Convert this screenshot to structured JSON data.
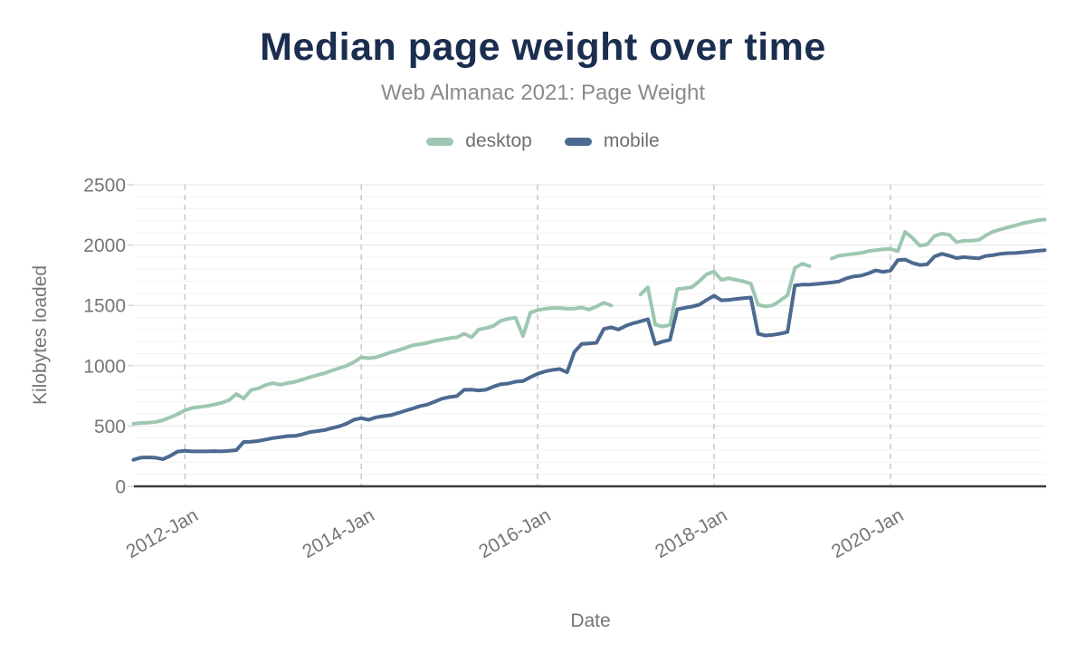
{
  "header": {
    "title": "Median page weight over time",
    "subtitle": "Web Almanac 2021: Page Weight"
  },
  "axes": {
    "y_label": "Kilobytes loaded",
    "x_label": "Date"
  },
  "legend": [
    {
      "label": "desktop",
      "color": "#9dc7b0"
    },
    {
      "label": "mobile",
      "color": "#4c6990"
    }
  ],
  "colors": {
    "title": "#1c2e4f",
    "subtitle_gray": "#8a8a8a",
    "axis_text_gray": "#757575",
    "axis_line": "#3c3c3c",
    "major_grid": "#e4e4e4",
    "minor_grid": "#f3f3f3",
    "dashed_grid": "#c8c8c8"
  },
  "chart_data": {
    "type": "line",
    "title": "Median page weight over time",
    "subtitle": "Web Almanac 2021: Page Weight",
    "xlabel": "Date",
    "ylabel": "Kilobytes loaded",
    "ylim": [
      0,
      2500
    ],
    "y_major_ticks": [
      0,
      500,
      1000,
      1500,
      2000,
      2500
    ],
    "y_minor_step": 100,
    "grid": "horizontal-minor+major, dashed vertical at year ticks",
    "legend_position": "top",
    "x_interval": "monthly",
    "x_start": "2011-06",
    "x_end": "2021-10",
    "x_ticks": [
      {
        "label": "2012-Jan",
        "index": 7
      },
      {
        "label": "2014-Jan",
        "index": 31
      },
      {
        "label": "2016-Jan",
        "index": 55
      },
      {
        "label": "2018-Jan",
        "index": 79
      },
      {
        "label": "2020-Jan",
        "index": 103
      }
    ],
    "series": [
      {
        "name": "desktop",
        "color": "#9dc7b0",
        "values": [
          520,
          525,
          528,
          533,
          548,
          572,
          598,
          630,
          650,
          658,
          666,
          678,
          692,
          715,
          765,
          728,
          798,
          812,
          840,
          855,
          842,
          856,
          866,
          885,
          905,
          922,
          938,
          960,
          980,
          1000,
          1030,
          1070,
          1062,
          1070,
          1090,
          1110,
          1128,
          1148,
          1170,
          1178,
          1190,
          1205,
          1218,
          1228,
          1235,
          1265,
          1235,
          1300,
          1312,
          1330,
          1373,
          1390,
          1398,
          1245,
          1440,
          1460,
          1472,
          1478,
          1478,
          1472,
          1473,
          1483,
          1465,
          1490,
          1522,
          1500,
          null,
          null,
          null,
          1590,
          1650,
          1340,
          1325,
          1338,
          1635,
          1642,
          1652,
          1700,
          1758,
          1780,
          1712,
          1725,
          1712,
          1700,
          1680,
          1505,
          1492,
          1500,
          1540,
          1585,
          1810,
          1845,
          1825,
          null,
          null,
          1888,
          1912,
          1920,
          1928,
          1935,
          1950,
          1958,
          1965,
          1968,
          1950,
          2110,
          2060,
          1995,
          2005,
          2075,
          2095,
          2085,
          2025,
          2035,
          2037,
          2042,
          2080,
          2112,
          2130,
          2147,
          2162,
          2180,
          2192,
          2205,
          2212
        ]
      },
      {
        "name": "mobile",
        "color": "#4c6990",
        "values": [
          220,
          238,
          240,
          237,
          225,
          252,
          288,
          295,
          290,
          290,
          290,
          292,
          290,
          294,
          300,
          368,
          370,
          376,
          388,
          400,
          408,
          417,
          418,
          432,
          450,
          458,
          466,
          483,
          498,
          520,
          552,
          565,
          552,
          572,
          582,
          590,
          607,
          627,
          645,
          665,
          678,
          702,
          727,
          740,
          748,
          800,
          802,
          795,
          802,
          827,
          847,
          852,
          868,
          872,
          905,
          933,
          953,
          965,
          972,
          945,
          1115,
          1180,
          1185,
          1190,
          1305,
          1318,
          1300,
          1330,
          1352,
          1368,
          1385,
          1180,
          1200,
          1215,
          1468,
          1480,
          1490,
          1505,
          1545,
          1580,
          1542,
          1546,
          1553,
          1560,
          1565,
          1265,
          1250,
          1255,
          1266,
          1280,
          1665,
          1672,
          1672,
          1678,
          1684,
          1690,
          1698,
          1724,
          1740,
          1746,
          1765,
          1790,
          1778,
          1788,
          1875,
          1880,
          1852,
          1835,
          1840,
          1905,
          1928,
          1912,
          1892,
          1900,
          1895,
          1890,
          1910,
          1917,
          1928,
          1933,
          1934,
          1940,
          1946,
          1952,
          1958
        ]
      }
    ]
  }
}
